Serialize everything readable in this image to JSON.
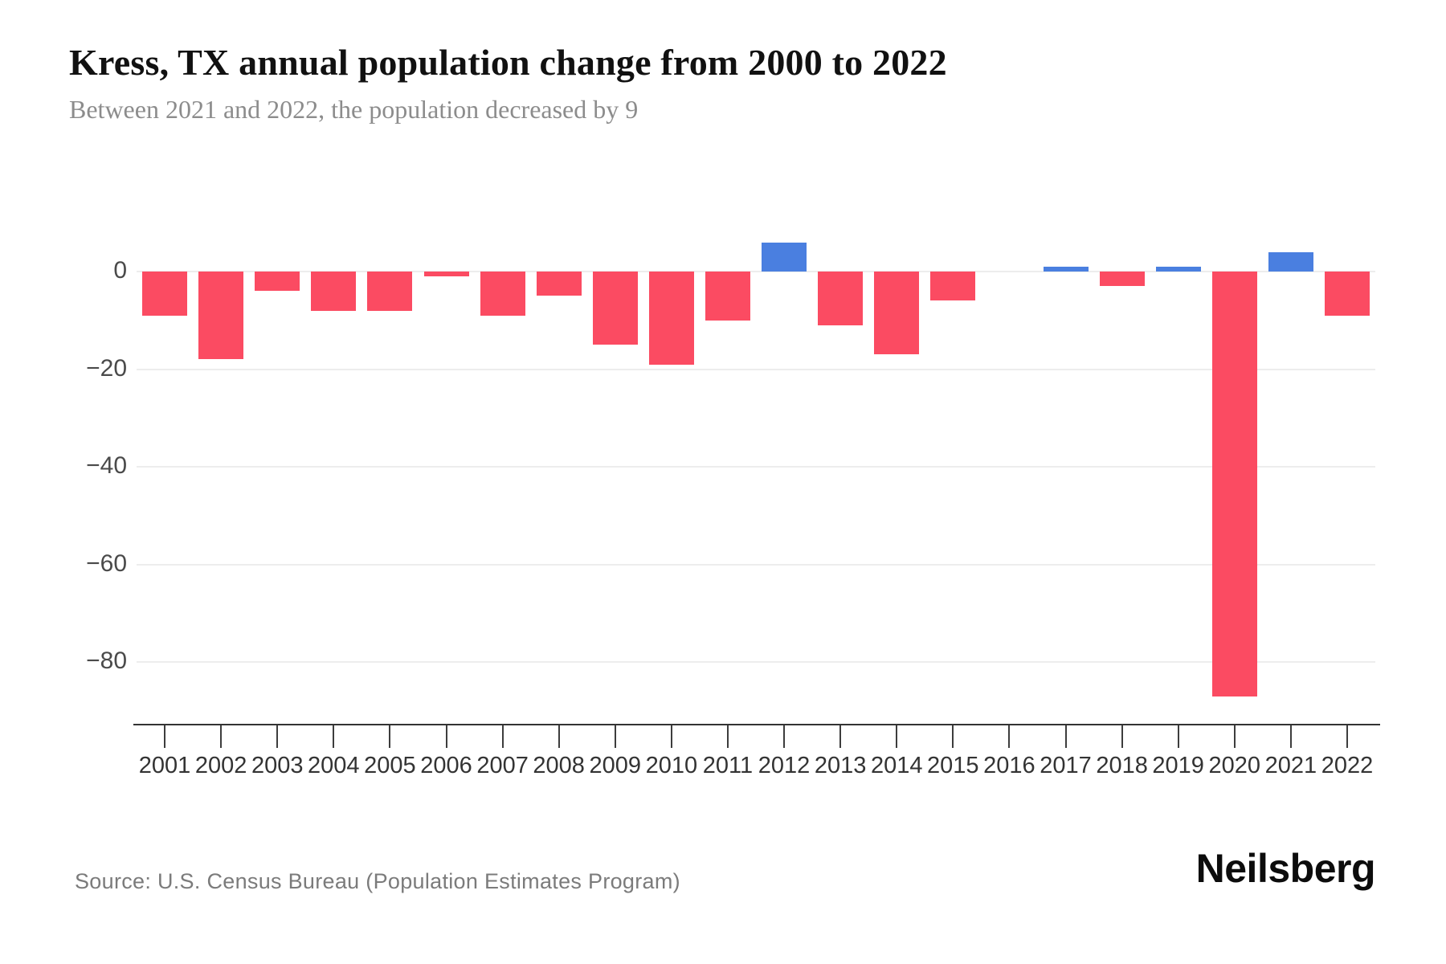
{
  "header": {
    "title": "Kress, TX annual population change from 2000 to 2022",
    "subtitle": "Between 2021 and 2022, the population decreased by 9"
  },
  "chart_data": {
    "type": "bar",
    "title": "Kress, TX annual population change from 2000 to 2022",
    "subtitle": "Between 2021 and 2022, the population decreased by 9",
    "xlabel": "",
    "ylabel": "",
    "categories": [
      "2001",
      "2002",
      "2003",
      "2004",
      "2005",
      "2006",
      "2007",
      "2008",
      "2009",
      "2010",
      "2011",
      "2012",
      "2013",
      "2014",
      "2015",
      "2016",
      "2017",
      "2018",
      "2019",
      "2020",
      "2021",
      "2022"
    ],
    "values": [
      -9,
      -18,
      -4,
      -8,
      -8,
      -1,
      -9,
      -5,
      -15,
      -19,
      -10,
      6,
      -11,
      -17,
      -6,
      0,
      1,
      -3,
      1,
      -87,
      4,
      -9
    ],
    "ylim": [
      -93,
      8
    ],
    "yticks": [
      0,
      -20,
      -40,
      -60,
      -80
    ],
    "ytick_labels": [
      "0",
      "−20",
      "−40",
      "−60",
      "−80"
    ],
    "grid": "horizontal",
    "legend": "none",
    "positive_color": "#4a7fe0",
    "negative_color": "#fb4b62"
  },
  "footer": {
    "source": "Source: U.S. Census Bureau (Population Estimates Program)",
    "brand": "Neilsberg"
  }
}
